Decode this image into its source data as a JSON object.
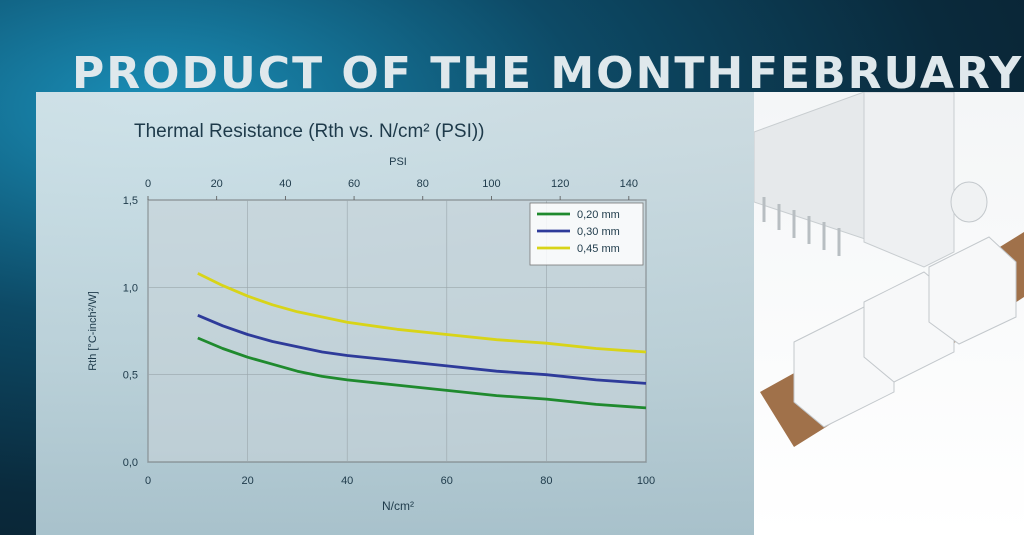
{
  "banner": {
    "headline": "PRODUCT OF THE MONTH",
    "month": "FEBRUARY"
  },
  "colors": {
    "series": [
      "#1f8a2e",
      "#2e3b9a",
      "#d8d418"
    ],
    "plot_bg": "#c9d4d8"
  },
  "chart_data": {
    "type": "line",
    "title": "Thermal Resistance (Rth vs. N/cm² (PSI))",
    "xlabel": "N/cm²",
    "ylabel": "Rth [°C-inch²/W]",
    "x2label": "PSI",
    "xlim": [
      0,
      100
    ],
    "ylim": [
      0,
      1.5
    ],
    "x2lim": [
      0,
      145
    ],
    "x_ticks": [
      "0",
      "20",
      "40",
      "60",
      "80",
      "100"
    ],
    "y_ticks": [
      "0,0",
      "0,5",
      "1,0",
      "1,5"
    ],
    "x2_ticks": [
      "0",
      "20",
      "40",
      "60",
      "80",
      "100",
      "120",
      "140"
    ],
    "grid": true,
    "legend_position": "top-right",
    "series": [
      {
        "name": "0,20 mm",
        "color": "#1f8a2e",
        "x": [
          10,
          15,
          20,
          25,
          30,
          35,
          40,
          50,
          60,
          70,
          80,
          90,
          100
        ],
        "y": [
          0.71,
          0.65,
          0.6,
          0.56,
          0.52,
          0.49,
          0.47,
          0.44,
          0.41,
          0.38,
          0.36,
          0.33,
          0.31
        ]
      },
      {
        "name": "0,30 mm",
        "color": "#2e3b9a",
        "x": [
          10,
          15,
          20,
          25,
          30,
          35,
          40,
          50,
          60,
          70,
          80,
          90,
          100
        ],
        "y": [
          0.84,
          0.78,
          0.73,
          0.69,
          0.66,
          0.63,
          0.61,
          0.58,
          0.55,
          0.52,
          0.5,
          0.47,
          0.45
        ]
      },
      {
        "name": "0,45 mm",
        "color": "#d8d418",
        "x": [
          10,
          15,
          20,
          25,
          30,
          35,
          40,
          50,
          60,
          70,
          80,
          90,
          100
        ],
        "y": [
          1.08,
          1.01,
          0.95,
          0.9,
          0.86,
          0.83,
          0.8,
          0.76,
          0.73,
          0.7,
          0.68,
          0.65,
          0.63
        ]
      }
    ]
  }
}
